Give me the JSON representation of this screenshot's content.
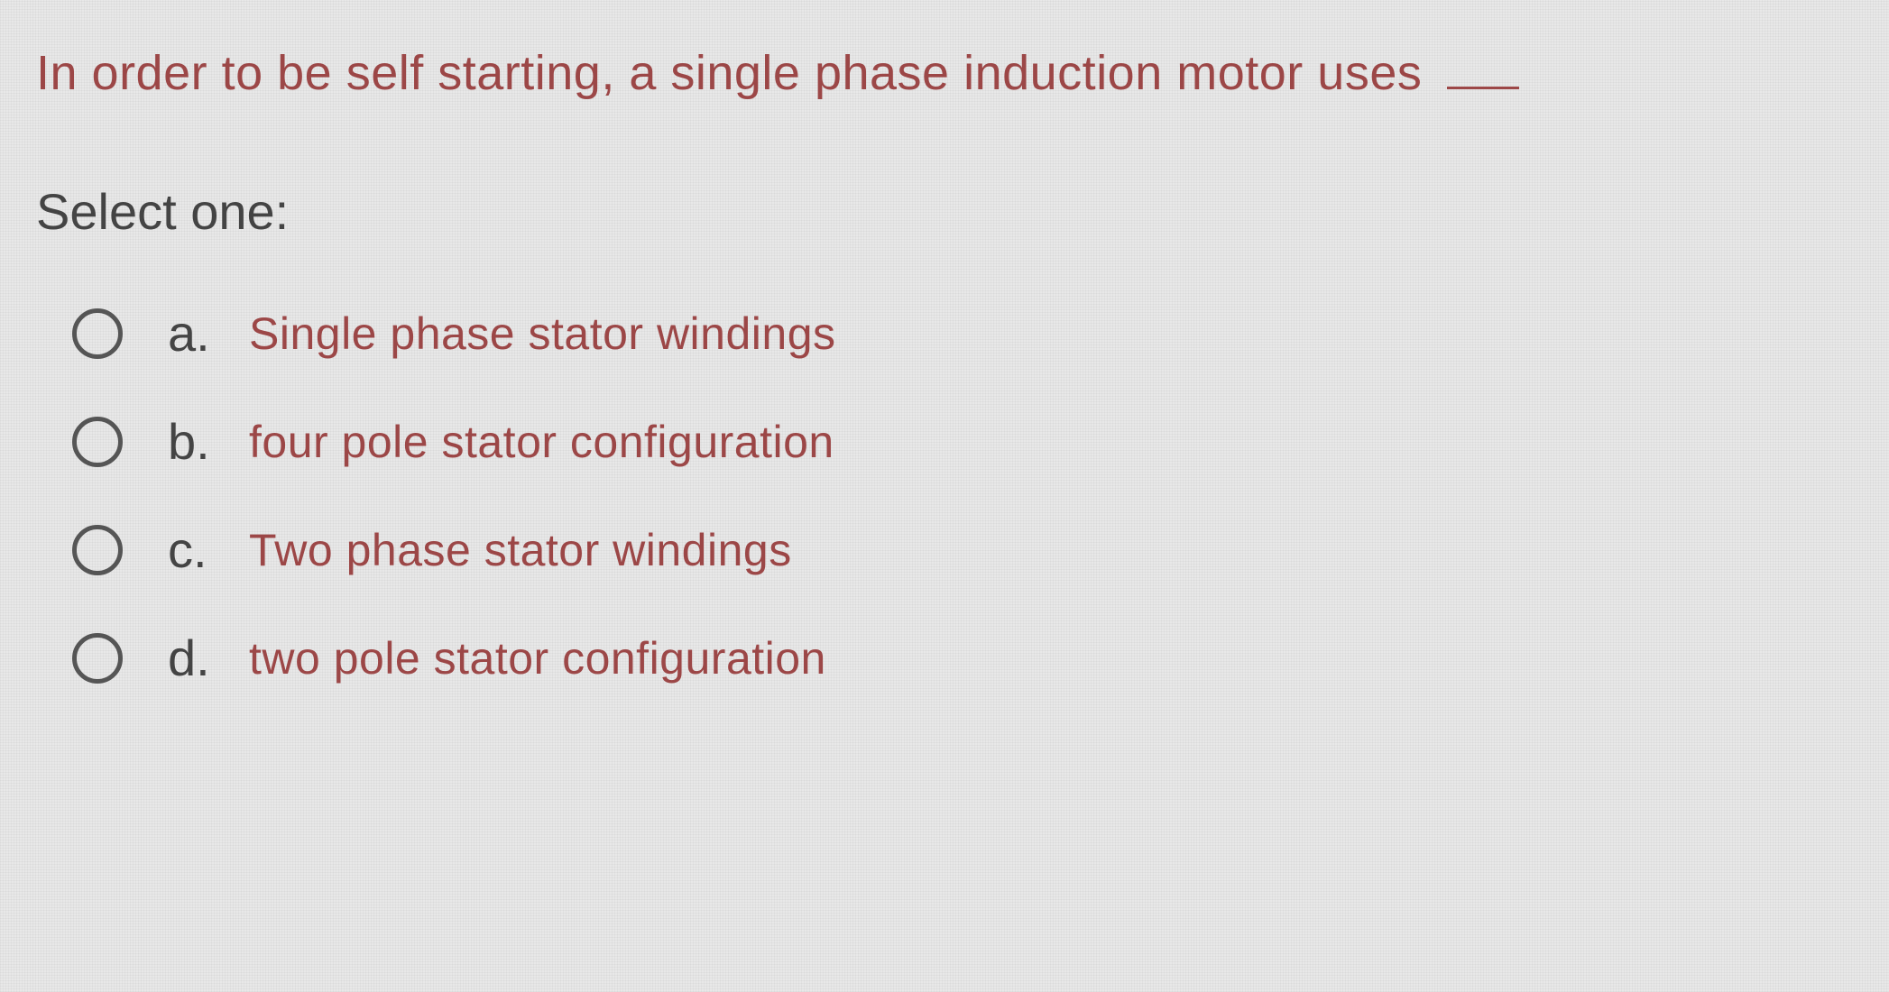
{
  "question": {
    "text": "In order to be self starting, a single phase induction motor uses",
    "selectPrompt": "Select one:",
    "options": [
      {
        "letter": "a.",
        "text": "Single phase stator windings"
      },
      {
        "letter": "b.",
        "text": "four pole stator configuration"
      },
      {
        "letter": "c.",
        "text": "Two phase stator windings"
      },
      {
        "letter": "d.",
        "text": "two pole stator configuration"
      }
    ]
  },
  "styling": {
    "background_color": "#e8e8e8",
    "question_color": "#9c4747",
    "prompt_color": "#444444",
    "option_letter_color": "#444444",
    "option_text_color": "#9c4747",
    "radio_border_color": "#555555",
    "question_fontsize": 54,
    "prompt_fontsize": 56,
    "option_letter_fontsize": 56,
    "option_text_fontsize": 50
  }
}
